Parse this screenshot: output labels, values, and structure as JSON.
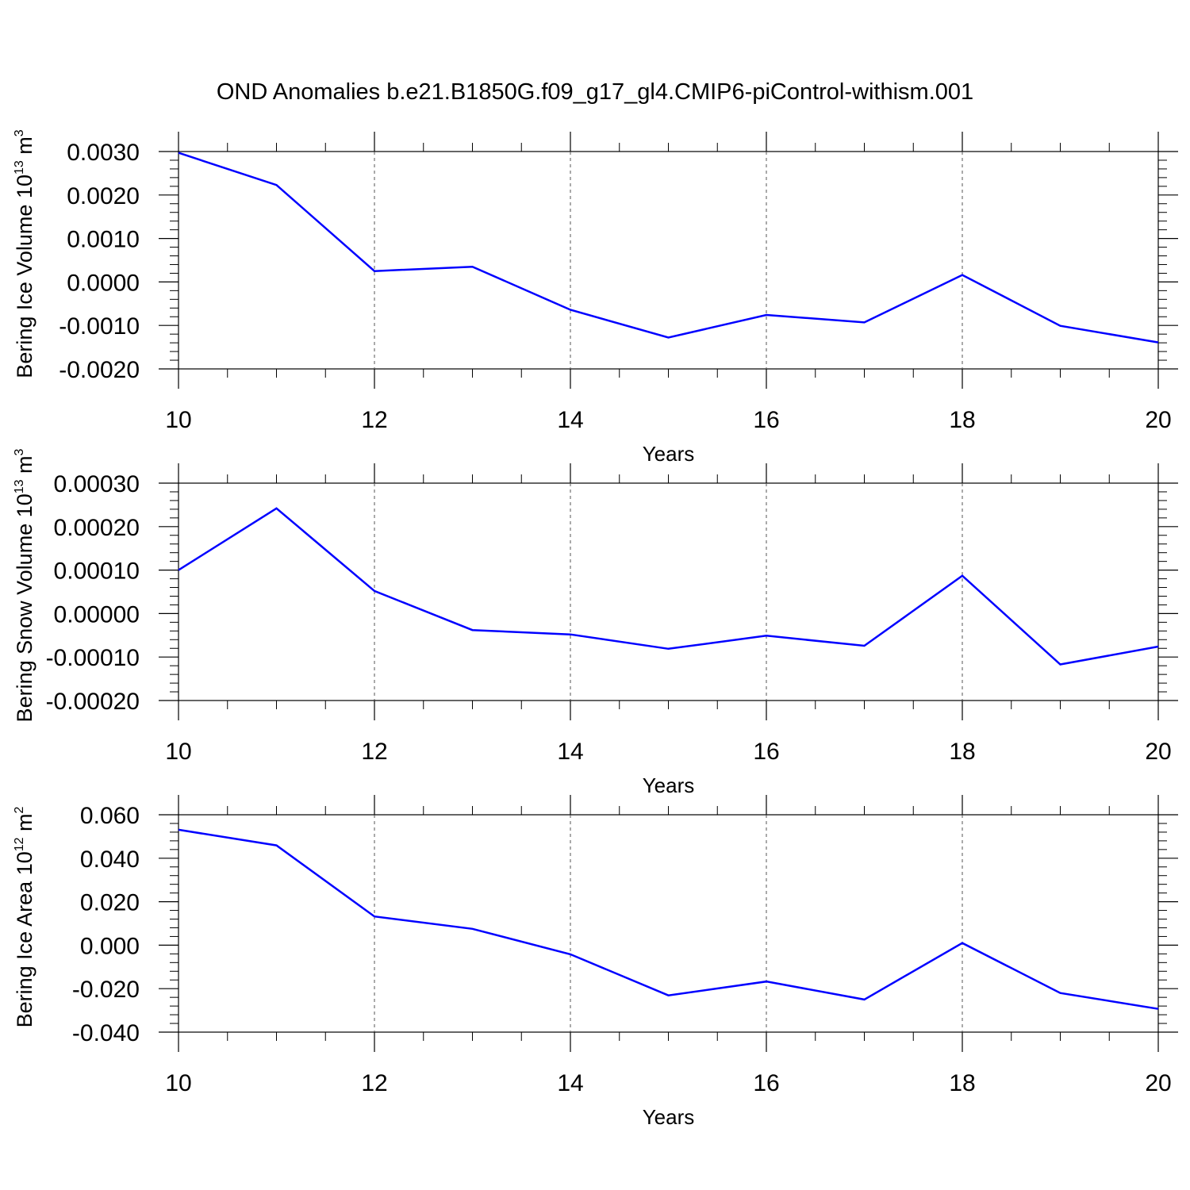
{
  "title": "OND Anomalies b.e21.B1850G.f09_g17_gl4.CMIP6-piControl-withism.001",
  "line_color": "#0000ff",
  "chart_data": [
    {
      "type": "line",
      "ylabel": {
        "text": "Bering Ice Volume 10",
        "exp": "13",
        "unit": " m",
        "unit_exp": "3"
      },
      "xlabel": "Years",
      "xlim": [
        10,
        20
      ],
      "ylim": [
        -0.002,
        0.003
      ],
      "xticks": [
        10,
        12,
        14,
        16,
        18,
        20
      ],
      "yticks": [
        -0.002,
        -0.001,
        0.0,
        0.001,
        0.002,
        0.003
      ],
      "ytick_labels": [
        "-0.0020",
        "-0.0010",
        "0.0000",
        "0.0010",
        "0.0020",
        "0.0030"
      ],
      "grid_x": true,
      "x": [
        10,
        11,
        12,
        13,
        14,
        15,
        16,
        17,
        18,
        19,
        20
      ],
      "y": [
        0.00297,
        0.00223,
        0.00025,
        0.00035,
        -0.00064,
        -0.00128,
        -0.00076,
        -0.00093,
        0.00016,
        -0.00101,
        -0.00139
      ]
    },
    {
      "type": "line",
      "ylabel": {
        "text": "Bering Snow Volume 10",
        "exp": "13",
        "unit": " m",
        "unit_exp": "3"
      },
      "xlabel": "Years",
      "xlim": [
        10,
        20
      ],
      "ylim": [
        -0.0002,
        0.0003
      ],
      "xticks": [
        10,
        12,
        14,
        16,
        18,
        20
      ],
      "yticks": [
        -0.0002,
        -0.0001,
        0.0,
        0.0001,
        0.0002,
        0.0003
      ],
      "ytick_labels": [
        "-0.00020",
        "-0.00010",
        "0.00000",
        "0.00010",
        "0.00020",
        "0.00030"
      ],
      "grid_x": true,
      "x": [
        10,
        11,
        12,
        13,
        14,
        15,
        16,
        17,
        18,
        19,
        20
      ],
      "y": [
        0.0001,
        0.000242,
        5.2e-05,
        -3.8e-05,
        -4.8e-05,
        -8.1e-05,
        -5.1e-05,
        -7.4e-05,
        8.7e-05,
        -0.000117,
        -7.6e-05
      ]
    },
    {
      "type": "line",
      "ylabel": {
        "text": "Bering Ice Area 10",
        "exp": "12",
        "unit": " m",
        "unit_exp": "2"
      },
      "xlabel": "Years",
      "xlim": [
        10,
        20
      ],
      "ylim": [
        -0.04,
        0.06
      ],
      "xticks": [
        10,
        12,
        14,
        16,
        18,
        20
      ],
      "yticks": [
        -0.04,
        -0.02,
        0.0,
        0.02,
        0.04,
        0.06
      ],
      "ytick_labels": [
        "-0.040",
        "-0.020",
        "0.000",
        "0.020",
        "0.040",
        "0.060"
      ],
      "grid_x": true,
      "x": [
        10,
        11,
        12,
        13,
        14,
        15,
        16,
        17,
        18,
        19,
        20
      ],
      "y": [
        0.0531,
        0.0459,
        0.0132,
        0.0075,
        -0.0042,
        -0.0231,
        -0.0167,
        -0.025,
        0.001,
        -0.022,
        -0.0293
      ]
    }
  ]
}
